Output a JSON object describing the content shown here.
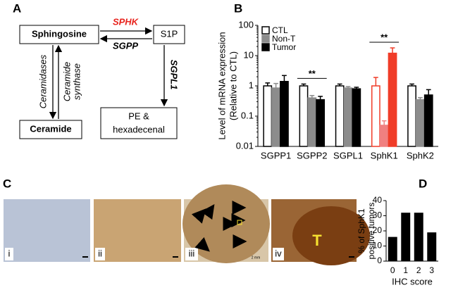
{
  "panel_labels": [
    "A",
    "B",
    "C",
    "D"
  ],
  "diagram": {
    "sphingosine": "Sphingosine",
    "s1p": "S1P",
    "sphk": "SPHK",
    "sgpp": "SGPP",
    "ceramide": "Ceramide",
    "pe": [
      "PE &",
      "hexadecenal"
    ],
    "ceramidases": "Ceramidases",
    "ceramide_synthase": [
      "Ceramide",
      "synthase"
    ],
    "sgpl1": "SGPL1"
  },
  "micrographs": {
    "labels": [
      "i",
      "ii",
      "iii",
      "iv"
    ],
    "tumor_mark": "T",
    "scale": "2 mm"
  },
  "chart_data": [
    {
      "type": "bar",
      "log_scale": true,
      "legend": "upper left",
      "ylabel": [
        "Level of mRNA expression",
        "(Relative to CTL)"
      ],
      "categories": [
        "SGPP1",
        "SGPP2",
        "SGPL1",
        "SphK1",
        "SphK2"
      ],
      "series": [
        {
          "name": "CTL",
          "colors": [
            "#ffffff",
            "#ffffff",
            "#ffffff",
            "#ffffff",
            "#ffffff"
          ],
          "edgecolors": [
            "#000000",
            "#000000",
            "#000000",
            "#f03c28",
            "#000000"
          ],
          "values": [
            1,
            1,
            1,
            1,
            1
          ],
          "errors": [
            0.25,
            0.15,
            0.15,
            0.9,
            0.15
          ]
        },
        {
          "name": "Non-T",
          "colors": [
            "#8c8c8c",
            "#8c8c8c",
            "#8c8c8c",
            "#f08080",
            "#8c8c8c"
          ],
          "edgecolors": [
            "#8c8c8c",
            "#8c8c8c",
            "#8c8c8c",
            "#f08080",
            "#8c8c8c"
          ],
          "values": [
            0.85,
            0.4,
            0.85,
            0.05,
            0.35
          ],
          "errors": [
            0.35,
            0.08,
            0.1,
            0.02,
            0.06
          ]
        },
        {
          "name": "Tumor",
          "colors": [
            "#000000",
            "#000000",
            "#000000",
            "#f03c28",
            "#000000"
          ],
          "edgecolors": [
            "#000000",
            "#000000",
            "#000000",
            "#f03c28",
            "#000000"
          ],
          "values": [
            1.4,
            0.35,
            0.8,
            12,
            0.5
          ],
          "errors": [
            0.8,
            0.1,
            0.1,
            6,
            0.25
          ]
        }
      ],
      "ylim": [
        0.01,
        100
      ],
      "yticks": [
        0.01,
        0.1,
        1,
        10,
        100
      ],
      "annotations": [
        {
          "text": "**",
          "category": "SGPP2"
        },
        {
          "text": "**",
          "category": "SphK1"
        }
      ]
    },
    {
      "type": "bar",
      "ylabel": [
        "% of SphK1",
        "positive tumors"
      ],
      "xlabel": "IHC score",
      "categories": [
        "0",
        "1",
        "2",
        "3"
      ],
      "values": [
        16,
        32,
        32,
        19
      ],
      "color": "#000000",
      "ylim": [
        0,
        40
      ],
      "yticks": [
        0,
        10,
        20,
        30,
        40
      ]
    }
  ]
}
